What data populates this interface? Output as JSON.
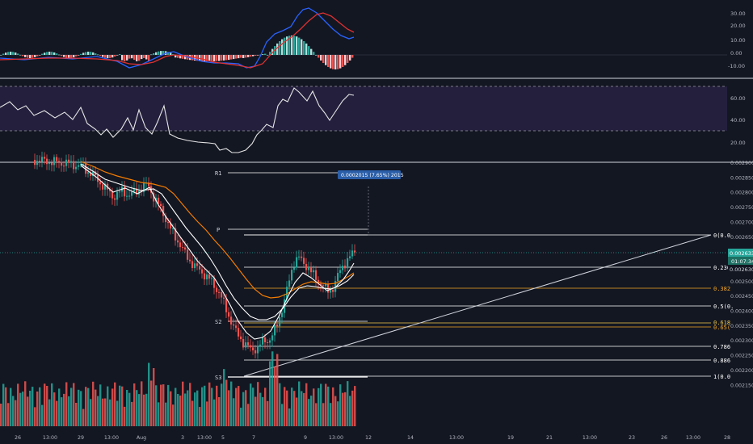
{
  "colors": {
    "background": "#131722",
    "up": "#26a69a",
    "down": "#ef5350",
    "macd_line": "#2962ff",
    "signal_line": "#e03131",
    "rsi_band": "#241f3d",
    "accent_label": "#2a5ea8",
    "fib_orange": "#f5a623",
    "fib_yellow": "#f2c94c",
    "ema_orange": "#f57c00"
  },
  "macd_pane": {
    "y_axis_labels": [
      "30.00",
      "20.00",
      "10.00",
      "0.00",
      "-10.00"
    ]
  },
  "rsi_pane": {
    "y_axis_labels": [
      "60.00",
      "40.00",
      "20.00"
    ]
  },
  "price_pane": {
    "y_axis_labels": [
      "0.0029000",
      "0.0028500",
      "0.0028000",
      "0.0027500",
      "0.0027000",
      "0.0026500",
      "0.0026000",
      "0.0025500",
      "0.0025000",
      "0.0024500",
      "0.0024000",
      "0.0023500",
      "0.0023000",
      "0.0022500",
      "0.0022000",
      "0.0021500"
    ],
    "current_price_label": "0.0026332",
    "countdown_label": "01:07:34",
    "secondary_price_label": "0.0026309",
    "measure_label": "0.0002015 (7.65%) 2015",
    "pivot_labels": {
      "r1": "R1",
      "p": "P",
      "s2": "S2",
      "s3": "S3"
    },
    "fib_labels": {
      "f0": "0(0.0",
      "f236": "0.236",
      "f382": "0.382",
      "f5": "0.5(0.",
      "f618": "0.618",
      "f65": "0.65(",
      "f786": "0.786",
      "f886": "0.886",
      "f1": "1(0.0"
    }
  },
  "time_axis": [
    "26",
    "13:00",
    "29",
    "13:00",
    "Aug",
    "3",
    "13:00",
    "5",
    "7",
    "9",
    "13:00",
    "12",
    "14",
    "13:00",
    "19",
    "21",
    "13:00",
    "23",
    "26",
    "13:00",
    "28"
  ]
}
